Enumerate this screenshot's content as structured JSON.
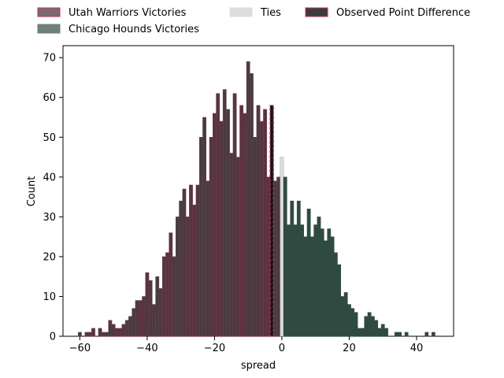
{
  "chart_data": {
    "type": "bar",
    "xlabel": "spread",
    "ylabel": "Count",
    "xlim": [
      -65,
      51
    ],
    "ylim": [
      0,
      73
    ],
    "xticks": [
      -60,
      -40,
      -20,
      0,
      20,
      40
    ],
    "yticks": [
      0,
      10,
      20,
      30,
      40,
      50,
      60,
      70
    ],
    "grid": false,
    "legend_placement": "top",
    "legend": [
      {
        "key": "utah",
        "label": "Utah Warriors Victories",
        "fill": "#7a6a70",
        "edge": "#c0305a"
      },
      {
        "key": "chicago",
        "label": "Chicago Hounds Victories",
        "fill": "#6e8078",
        "edge": "#6e8078"
      },
      {
        "key": "ties",
        "label": "Ties",
        "fill": "#dddddd",
        "edge": "#dddddd"
      },
      {
        "key": "observed",
        "label": "Observed Point Difference",
        "fill": "#3c3c3c",
        "edge": "#c0305a"
      }
    ],
    "bin_width": 1,
    "series": [
      {
        "name": "Utah Warriors Victories",
        "color": "#4b3a40",
        "edge": "#8c2f4c",
        "x": [
          -60,
          -59,
          -58,
          -57,
          -56,
          -55,
          -54,
          -53,
          -52,
          -51,
          -50,
          -49,
          -48,
          -47,
          -46,
          -45,
          -44,
          -43,
          -42,
          -41,
          -40,
          -39,
          -38,
          -37,
          -36,
          -35,
          -34,
          -33,
          -32,
          -31,
          -30,
          -29,
          -28,
          -27,
          -26,
          -25,
          -24,
          -23,
          -22,
          -21,
          -20,
          -19,
          -18,
          -17,
          -16,
          -15,
          -14,
          -13,
          -12,
          -11,
          -10,
          -9,
          -8,
          -7,
          -6,
          -5,
          -4,
          -3,
          -2,
          -1
        ],
        "values": [
          1,
          0,
          1,
          1,
          2,
          0,
          2,
          1,
          1,
          4,
          3,
          2,
          2,
          3,
          4,
          5,
          7,
          9,
          9,
          10,
          16,
          14,
          8,
          15,
          12,
          20,
          21,
          26,
          20,
          30,
          34,
          37,
          30,
          38,
          33,
          38,
          50,
          55,
          39,
          50,
          56,
          61,
          54,
          62,
          57,
          46,
          61,
          45,
          58,
          56,
          69,
          66,
          50,
          58,
          54,
          57,
          40,
          40,
          39,
          40
        ]
      },
      {
        "name": "Ties",
        "color": "#dddddd",
        "edge": "#aaaaaa",
        "x": [
          0
        ],
        "values": [
          45
        ]
      },
      {
        "name": "Chicago Hounds Victories",
        "color": "#2f4a40",
        "edge": "#2f4a40",
        "x": [
          1,
          2,
          3,
          4,
          5,
          6,
          7,
          8,
          9,
          10,
          11,
          12,
          13,
          14,
          15,
          16,
          17,
          18,
          19,
          20,
          21,
          22,
          23,
          24,
          25,
          26,
          27,
          28,
          29,
          30,
          31,
          32,
          33,
          34,
          35,
          36,
          37,
          38,
          39,
          40,
          41,
          42,
          43,
          44,
          45
        ],
        "values": [
          40,
          28,
          34,
          28,
          34,
          28,
          25,
          32,
          25,
          28,
          30,
          27,
          24,
          27,
          25,
          21,
          18,
          10,
          11,
          8,
          7,
          6,
          2,
          2,
          5,
          6,
          5,
          4,
          2,
          3,
          2,
          0,
          0,
          1,
          1,
          0,
          1,
          0,
          0,
          0,
          0,
          0,
          1,
          0,
          1
        ]
      }
    ],
    "observed": {
      "name": "Observed Point Difference",
      "x": -3,
      "value": 58
    }
  }
}
